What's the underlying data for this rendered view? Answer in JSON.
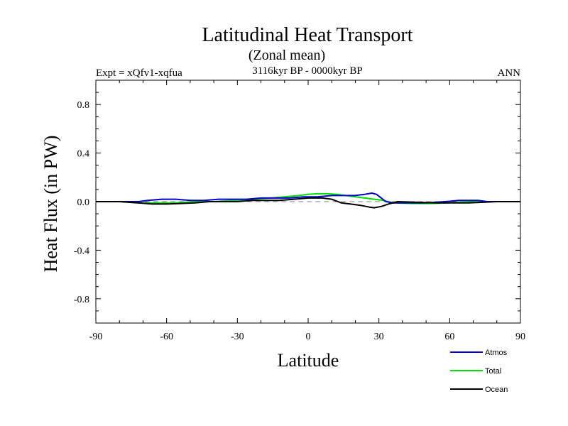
{
  "chart_data": {
    "type": "line",
    "title": "Latitudinal Heat Transport",
    "subtitle": "(Zonal mean)",
    "period": "3116kyr BP - 0000kyr BP",
    "left_label": "Expt = xQfv1-xqfua",
    "right_label": "ANN",
    "xlabel": "Latitude",
    "ylabel": "Heat Flux (in PW)",
    "xlim": [
      -90,
      90
    ],
    "ylim": [
      -1.0,
      1.0
    ],
    "x_ticks": [
      -90,
      -60,
      -30,
      0,
      30,
      60,
      90
    ],
    "x_tick_labels": [
      "-90",
      "-60",
      "-30",
      "0",
      "30",
      "60",
      "90"
    ],
    "y_ticks": [
      0.8,
      0.4,
      0.0,
      -0.4,
      -0.8
    ],
    "y_tick_labels": [
      "0.8",
      "0.4",
      "0.0",
      "-0.4",
      "-0.8"
    ],
    "zero_line": {
      "from": -80,
      "to": 80,
      "style": "dashed",
      "color": "#808080"
    },
    "series": [
      {
        "name": "Atmos",
        "color": "#0000cc",
        "x": [
          -90,
          -80,
          -72,
          -68,
          -62,
          -56,
          -50,
          -44,
          -38,
          -32,
          -26,
          -20,
          -14,
          -8,
          -2,
          4,
          10,
          16,
          20,
          24,
          27,
          29,
          31,
          33,
          36,
          42,
          50,
          58,
          64,
          68,
          72,
          76,
          80,
          90
        ],
        "y": [
          0,
          0,
          0.0,
          0.01,
          0.02,
          0.02,
          0.01,
          0.01,
          0.02,
          0.02,
          0.02,
          0.03,
          0.03,
          0.03,
          0.04,
          0.04,
          0.05,
          0.05,
          0.05,
          0.06,
          0.07,
          0.06,
          0.03,
          0.0,
          -0.01,
          -0.01,
          -0.01,
          0.0,
          0.01,
          0.01,
          0.01,
          0.0,
          0.0,
          0.0
        ]
      },
      {
        "name": "Total",
        "color": "#00dd00",
        "x": [
          -90,
          -80,
          -72,
          -64,
          -56,
          -48,
          -40,
          -32,
          -24,
          -16,
          -10,
          -4,
          0,
          4,
          8,
          12,
          16,
          20,
          24,
          28,
          32,
          36,
          44,
          52,
          60,
          68,
          74,
          80,
          90
        ],
        "y": [
          0,
          0,
          -0.01,
          -0.01,
          -0.01,
          0.0,
          0.0,
          0.01,
          0.02,
          0.03,
          0.04,
          0.05,
          0.06,
          0.065,
          0.065,
          0.06,
          0.05,
          0.04,
          0.03,
          0.02,
          0.01,
          -0.01,
          -0.015,
          -0.015,
          -0.01,
          0.0,
          0.0,
          0.0,
          0.0
        ]
      },
      {
        "name": "Ocean",
        "color": "#000000",
        "x": [
          -90,
          -80,
          -72,
          -66,
          -60,
          -54,
          -48,
          -42,
          -36,
          -30,
          -24,
          -18,
          -12,
          -6,
          0,
          6,
          10,
          14,
          18,
          22,
          26,
          28,
          31,
          34,
          38,
          46,
          54,
          62,
          68,
          74,
          80,
          90
        ],
        "y": [
          0,
          0,
          -0.01,
          -0.02,
          -0.02,
          -0.015,
          -0.01,
          0.0,
          0.0,
          0.0,
          0.01,
          0.01,
          0.01,
          0.02,
          0.03,
          0.03,
          0.02,
          -0.01,
          -0.02,
          -0.03,
          -0.045,
          -0.05,
          -0.04,
          -0.02,
          0.0,
          -0.005,
          -0.01,
          -0.01,
          -0.01,
          -0.005,
          0.0,
          0.0
        ]
      }
    ]
  }
}
